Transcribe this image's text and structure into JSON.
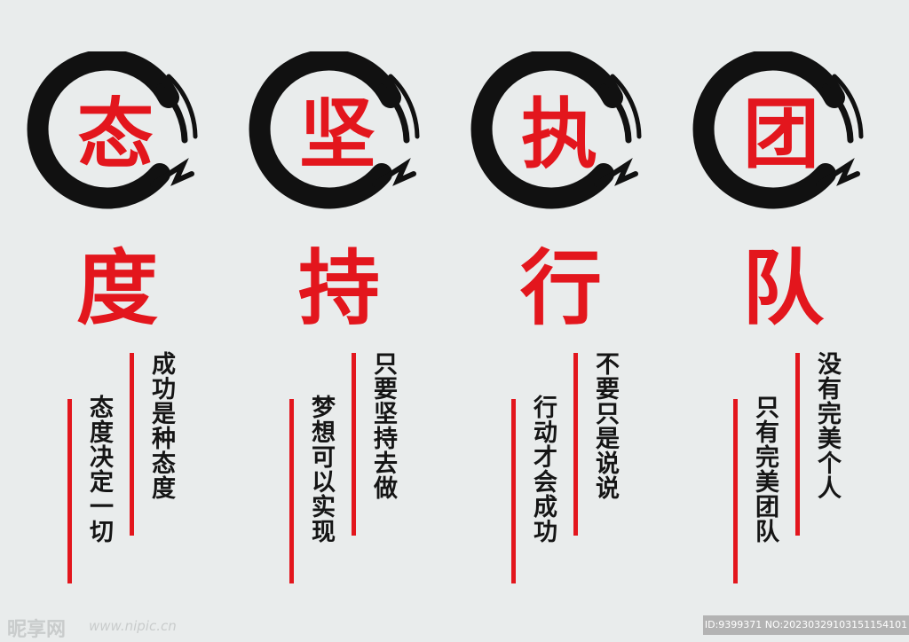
{
  "colors": {
    "accent": "#e3161d",
    "ink": "#151515",
    "background": "#e9ecec"
  },
  "columns": [
    {
      "top_char": "态",
      "bottom_char": "度",
      "line_outer": "成功是种态度",
      "line_inner": "态度决定一切"
    },
    {
      "top_char": "坚",
      "bottom_char": "持",
      "line_outer": "只要坚持去做",
      "line_inner": "梦想可以实现"
    },
    {
      "top_char": "执",
      "bottom_char": "行",
      "line_outer": "不要只是说说",
      "line_inner": "行动才会成功"
    },
    {
      "top_char": "团",
      "bottom_char": "队",
      "line_outer": "没有完美个人",
      "line_inner": "只有完美团队"
    }
  ],
  "icons": {
    "ring": "ink-brush-circle-icon"
  },
  "footer": {
    "logo": "昵享网",
    "url": "www.nipic.cn",
    "id": "ID:9399371 NO:20230329103151154101"
  }
}
